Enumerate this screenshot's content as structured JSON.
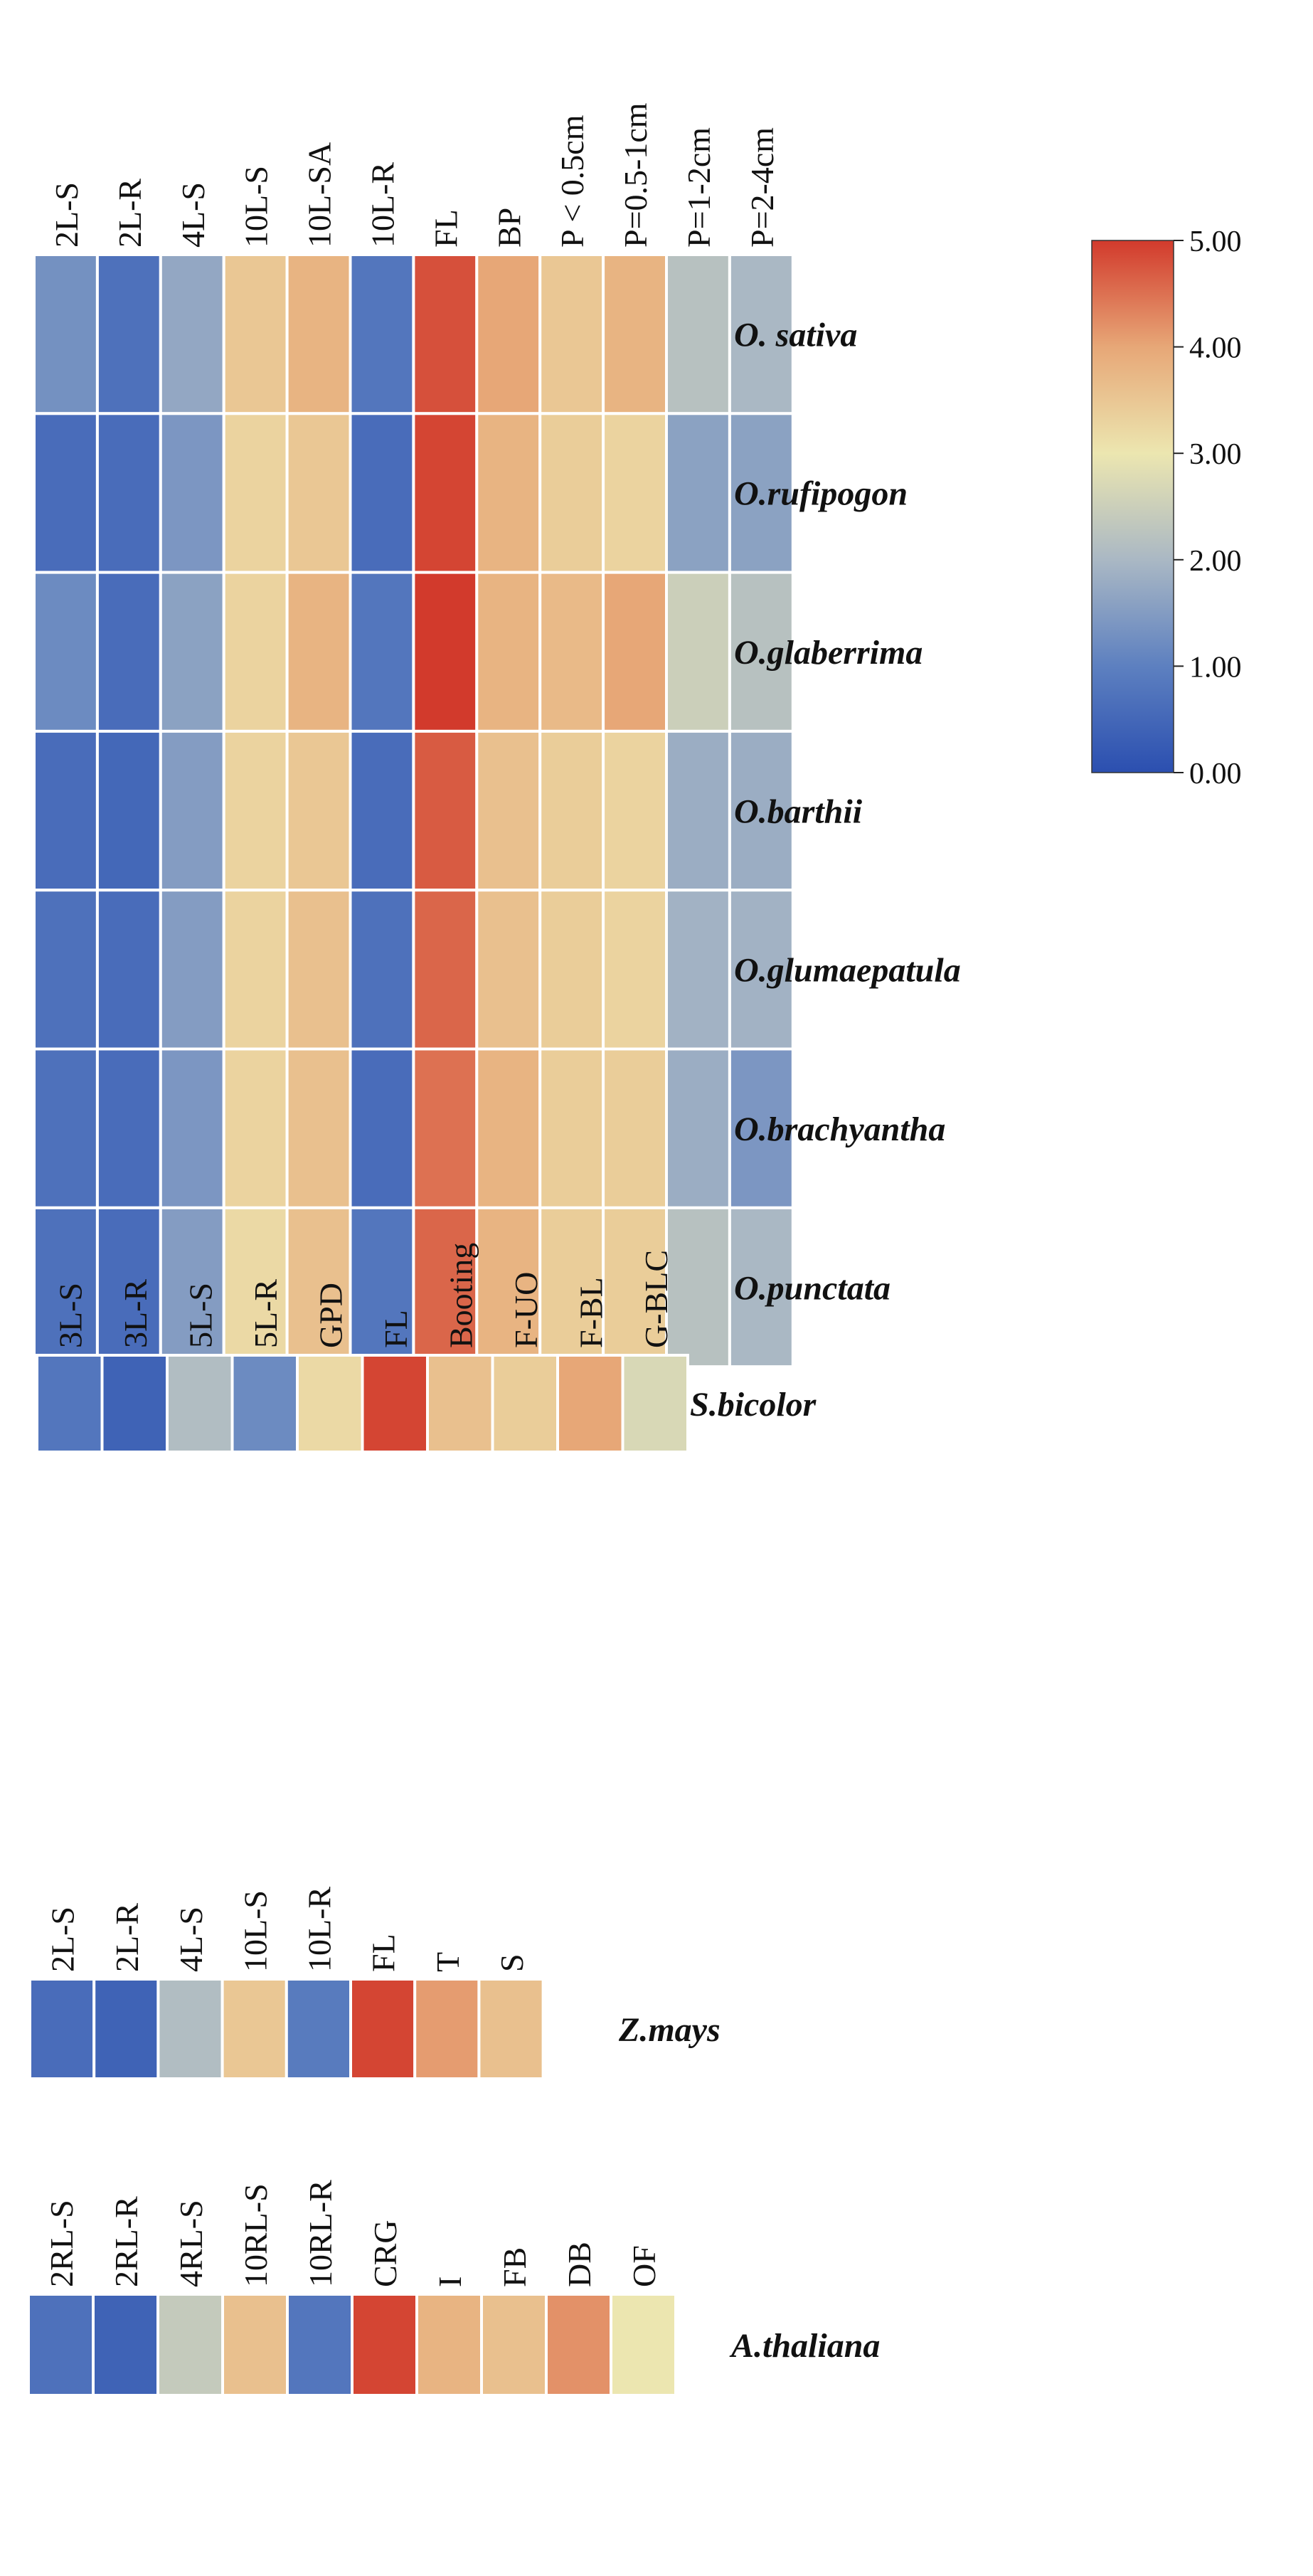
{
  "chart_data": {
    "type": "heatmap",
    "value_range": [
      0,
      5
    ],
    "colorbar": {
      "ticks": [
        "0.00",
        "1.00",
        "2.00",
        "3.00",
        "4.00",
        "5.00"
      ],
      "tick_values": [
        0,
        1,
        2,
        3,
        4,
        5
      ],
      "colors": [
        "#2b4fb0",
        "#5d80c0",
        "#aab8c4",
        "#ece6b0",
        "#e7a777",
        "#d23a2c"
      ]
    },
    "panels": [
      {
        "name": "oryza",
        "columns": [
          "2L-S",
          "2L-R",
          "4L-S",
          "10L-S",
          "10L-SA",
          "10L-R",
          "FL",
          "BP",
          "P < 0.5cm",
          "P=0.5-1cm",
          "P=1-2cm",
          "P=2-4cm"
        ],
        "rows": [
          "O. sativa",
          "O.rufipogon",
          "O.glaberrima",
          "O.barthii",
          "O.glumaepatula",
          "O.brachyantha",
          "O.punctata"
        ],
        "values": [
          [
            1.3,
            0.7,
            1.7,
            3.5,
            3.8,
            0.8,
            4.8,
            4.0,
            3.5,
            3.8,
            2.2,
            2.0
          ],
          [
            0.6,
            0.6,
            1.4,
            3.3,
            3.5,
            0.6,
            4.9,
            3.8,
            3.4,
            3.3,
            1.6,
            1.6
          ],
          [
            1.2,
            0.6,
            1.6,
            3.3,
            3.8,
            0.8,
            5.0,
            3.8,
            3.7,
            4.0,
            2.5,
            2.2
          ],
          [
            0.6,
            0.5,
            1.5,
            3.3,
            3.5,
            0.6,
            4.7,
            3.6,
            3.4,
            3.3,
            1.8,
            1.8
          ],
          [
            0.7,
            0.6,
            1.5,
            3.3,
            3.6,
            0.7,
            4.6,
            3.6,
            3.4,
            3.3,
            1.9,
            1.9
          ],
          [
            0.7,
            0.6,
            1.4,
            3.3,
            3.6,
            0.6,
            4.5,
            3.8,
            3.4,
            3.4,
            1.8,
            1.4
          ],
          [
            0.7,
            0.6,
            1.5,
            3.2,
            3.6,
            0.8,
            4.6,
            3.8,
            3.4,
            3.4,
            2.2,
            2.0
          ]
        ]
      },
      {
        "name": "sorghum",
        "columns": [
          "3L-S",
          "3L-R",
          "5L-S",
          "5L-R",
          "GPD",
          "FL",
          "Booting",
          "F-UO",
          "F-BL",
          "G-BLC"
        ],
        "rows": [
          "S.bicolor"
        ],
        "values": [
          [
            0.8,
            0.4,
            2.1,
            1.2,
            3.2,
            4.9,
            3.6,
            3.4,
            4.0,
            2.7
          ]
        ]
      },
      {
        "name": "maize",
        "columns": [
          "2L-S",
          "2L-R",
          "4L-S",
          "10L-S",
          "10L-R",
          "FL",
          "T",
          "S"
        ],
        "rows": [
          "Z.mays"
        ],
        "values": [
          [
            0.6,
            0.4,
            2.1,
            3.5,
            0.9,
            4.9,
            4.1,
            3.6
          ]
        ]
      },
      {
        "name": "arabidopsis",
        "columns": [
          "2RL-S",
          "2RL-R",
          "4RL-S",
          "10RL-S",
          "10RL-R",
          "CRG",
          "I",
          "FB",
          "DB",
          "OF"
        ],
        "rows": [
          "A.thaliana"
        ],
        "values": [
          [
            0.7,
            0.4,
            2.4,
            3.6,
            0.8,
            4.9,
            3.8,
            3.6,
            4.2,
            3.0
          ]
        ]
      }
    ]
  }
}
